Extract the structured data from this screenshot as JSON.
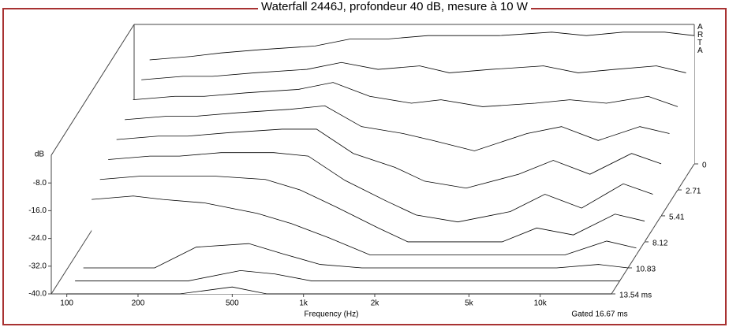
{
  "chart_data": {
    "type": "waterfall",
    "title": "Waterfall 2446J, profondeur 40 dB, mesure à 10 W",
    "watermark": "ARTA",
    "y_label": "dB",
    "x_label": "Frequency (Hz)",
    "gate_label": "Gated 16.67 ms",
    "log_x": true,
    "color": "#000000",
    "xlim": [
      86,
      20000
    ],
    "xticks": [
      100,
      200,
      500,
      {
        "value": 1000,
        "label": "1k"
      },
      {
        "value": 2000,
        "label": "2k"
      },
      {
        "value": 5000,
        "label": "5k"
      },
      {
        "value": 10000,
        "label": "10k"
      }
    ],
    "ylim": [
      -40,
      0
    ],
    "yticks": [
      {
        "value": -8,
        "label": "-8.0"
      },
      {
        "value": -16,
        "label": "-16.0"
      },
      {
        "value": -24,
        "label": "-24.0"
      },
      {
        "value": -32,
        "label": "-32.0"
      },
      {
        "value": -40,
        "label": "-40.0"
      }
    ],
    "tlim": [
      0,
      13.54
    ],
    "tticks": [
      0,
      2.71,
      5.41,
      8.12,
      10.83,
      {
        "value": 13.54,
        "label": "13.54 ms"
      }
    ],
    "x": [
      100,
      150,
      200,
      300,
      500,
      700,
      1000,
      1500,
      2000,
      3000,
      5000,
      7000,
      10000,
      15000,
      20000
    ],
    "slices": [
      {
        "time": 0,
        "values": [
          -10,
          -9,
          -8,
          -7,
          -6,
          -4,
          -4,
          -3,
          -3,
          -3,
          -2,
          -3,
          -2,
          -2,
          -3
        ]
      },
      {
        "time": 1.35,
        "values": [
          -12,
          -11,
          -11,
          -10,
          -9,
          -7,
          -9,
          -8,
          -10,
          -9,
          -8,
          -10,
          -9,
          -8,
          -10
        ]
      },
      {
        "time": 2.71,
        "values": [
          -14,
          -13,
          -13,
          -12,
          -11,
          -9,
          -13,
          -15,
          -14,
          -16,
          -15,
          -14,
          -15,
          -13,
          -16
        ]
      },
      {
        "time": 4.06,
        "values": [
          -16,
          -15,
          -15,
          -14,
          -13,
          -12,
          -18,
          -20,
          -22,
          -25,
          -20,
          -18,
          -22,
          -18,
          -20
        ]
      },
      {
        "time": 5.41,
        "values": [
          -18,
          -17,
          -17,
          -16,
          -15,
          -15,
          -22,
          -26,
          -30,
          -32,
          -28,
          -24,
          -28,
          -22,
          -25
        ]
      },
      {
        "time": 6.77,
        "values": [
          -20,
          -19,
          -19,
          -18,
          -18,
          -19,
          -26,
          -32,
          -36,
          -38,
          -35,
          -30,
          -34,
          -27,
          -30
        ]
      },
      {
        "time": 8.12,
        "values": [
          -22,
          -21,
          -21,
          -21,
          -22,
          -25,
          -30,
          -36,
          -40,
          -40,
          -40,
          -36,
          -38,
          -32,
          -34
        ]
      },
      {
        "time": 9.48,
        "values": [
          -24,
          -23,
          -24,
          -25,
          -28,
          -31,
          -35,
          -40,
          -40,
          -40,
          -40,
          -40,
          -40,
          -36,
          -38
        ]
      },
      {
        "time": 10.83,
        "values": [
          -40,
          -40,
          -40,
          -34,
          -33,
          -36,
          -39,
          -40,
          -40,
          -40,
          -40,
          -40,
          -40,
          -39,
          -40
        ]
      },
      {
        "time": 12.19,
        "values": [
          -40,
          -40,
          -40,
          -40,
          -37,
          -38,
          -40,
          -40,
          -40,
          -40,
          -40,
          -40,
          -40,
          -40,
          -40
        ]
      },
      {
        "time": 13.54,
        "values": [
          -40,
          -40,
          -40,
          -40,
          -38,
          -40,
          -40,
          -40,
          -40,
          -40,
          -40,
          -40,
          -40,
          -40,
          -40
        ]
      }
    ]
  }
}
